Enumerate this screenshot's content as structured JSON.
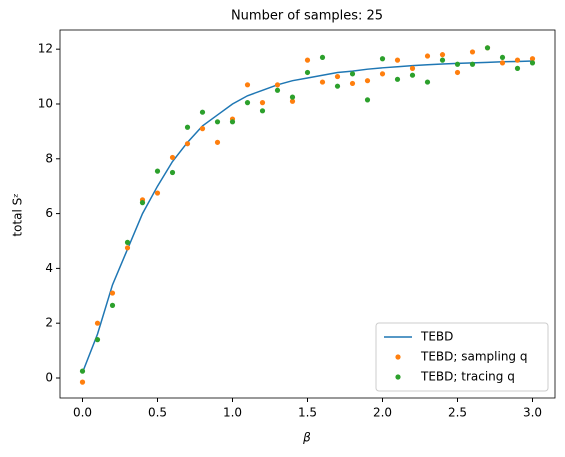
{
  "chart_data": {
    "type": "line",
    "title": "Number of samples: 25",
    "x_label": "β",
    "y_label": "total Sᶻ",
    "x": [
      0.0,
      0.1,
      0.2,
      0.3,
      0.4,
      0.5,
      0.6,
      0.7,
      0.8,
      0.9,
      1.0,
      1.1,
      1.2,
      1.3,
      1.4,
      1.5,
      1.6,
      1.7,
      1.8,
      1.9,
      2.0,
      2.1,
      2.2,
      2.3,
      2.4,
      2.5,
      2.6,
      2.7,
      2.8,
      2.9,
      3.0
    ],
    "series": [
      {
        "name": "TEBD",
        "color": "#1f77b4",
        "style": "line",
        "values": [
          0.2,
          1.6,
          3.4,
          4.7,
          6.0,
          7.0,
          7.9,
          8.6,
          9.2,
          9.6,
          10.0,
          10.3,
          10.5,
          10.7,
          10.85,
          10.95,
          11.05,
          11.15,
          11.2,
          11.27,
          11.32,
          11.36,
          11.4,
          11.43,
          11.46,
          11.48,
          11.5,
          11.52,
          11.54,
          11.55,
          11.57
        ]
      },
      {
        "name": "TEBD; sampling q",
        "color": "#ff7f0e",
        "style": "markers",
        "values": [
          -0.15,
          2.0,
          3.1,
          4.75,
          6.5,
          6.75,
          8.05,
          8.55,
          9.1,
          8.6,
          9.45,
          10.7,
          10.05,
          10.7,
          10.1,
          11.6,
          10.8,
          11.0,
          10.75,
          10.85,
          11.1,
          11.6,
          11.3,
          11.75,
          11.8,
          11.15,
          11.9,
          12.05,
          11.5,
          11.6,
          11.65
        ]
      },
      {
        "name": "TEBD; tracing q",
        "color": "#2ca02c",
        "style": "markers",
        "values": [
          0.25,
          1.4,
          2.65,
          4.95,
          6.4,
          7.55,
          7.5,
          9.15,
          9.7,
          9.35,
          9.35,
          10.05,
          9.75,
          10.5,
          10.25,
          11.15,
          11.7,
          10.65,
          11.1,
          10.15,
          11.65,
          10.9,
          11.05,
          10.8,
          11.6,
          11.45,
          11.45,
          12.05,
          11.7,
          11.3,
          11.5
        ]
      }
    ],
    "xlim": [
      -0.15,
      3.15
    ],
    "xticks": [
      {
        "value": 0,
        "label": "0.0"
      },
      0.5,
      {
        "value": 1,
        "label": "1.0"
      },
      1.5,
      {
        "value": 2,
        "label": "2.0"
      },
      2.5,
      {
        "value": 3,
        "label": "3.0"
      }
    ],
    "ylim": [
      -0.73,
      12.7
    ],
    "yticks": [
      0,
      2,
      4,
      6,
      8,
      10,
      12
    ],
    "legend": "lower right"
  }
}
